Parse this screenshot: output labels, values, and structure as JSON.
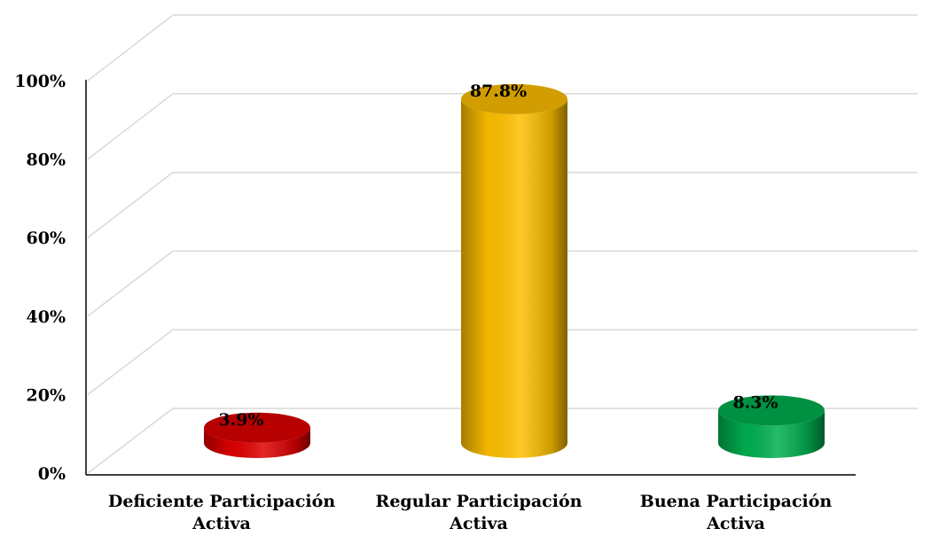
{
  "chart_data": {
    "type": "bar3d",
    "categories": [
      "Deficiente Participación Activa",
      "Regular Participación Activa",
      "Buena Participación Activa"
    ],
    "values": [
      3.9,
      87.8,
      8.3
    ],
    "value_labels": [
      "3.9%",
      "87.8%",
      "8.3%"
    ],
    "colors": [
      "#e00000",
      "#ffc000",
      "#00b050"
    ],
    "ylim": [
      0,
      100
    ],
    "yticks": [
      {
        "value": 0,
        "label": "0%"
      },
      {
        "value": 20,
        "label": "20%"
      },
      {
        "value": 40,
        "label": "40%"
      },
      {
        "value": 60,
        "label": "60%"
      },
      {
        "value": 80,
        "label": "80%"
      },
      {
        "value": 100,
        "label": "100%"
      }
    ],
    "grid": true
  }
}
